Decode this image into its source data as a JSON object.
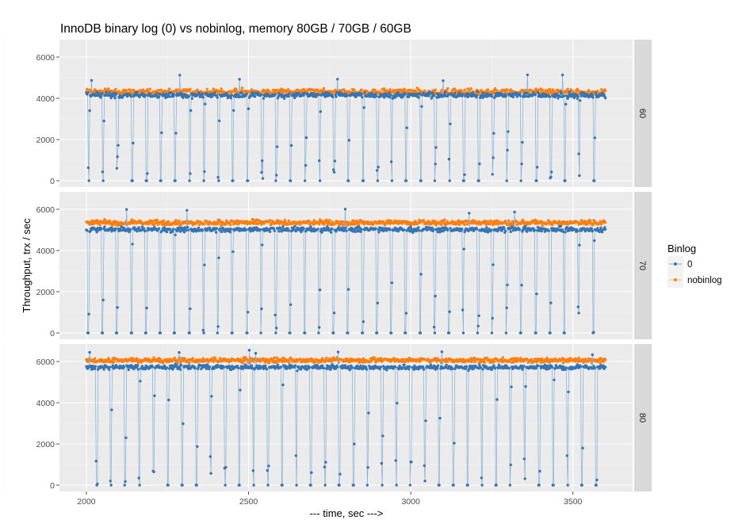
{
  "chart_data": {
    "type": "scatter",
    "title": "InnoDB binary log (0) vs nobinlog, memory 80GB / 70GB / 60GB",
    "xlabel": "--- time, sec --->",
    "ylabel": "Throughput, trx / sec",
    "xlim": [
      1917,
      3684
    ],
    "x_ticks": [
      "2000",
      "2500",
      "3000",
      "3500"
    ],
    "x_tick_values": [
      2000,
      2500,
      3000,
      3500
    ],
    "ylim": [
      -308,
      6846
    ],
    "y_ticks": [
      "0",
      "2000",
      "4000",
      "6000"
    ],
    "y_tick_values": [
      0,
      2000,
      4000,
      6000
    ],
    "grid": true,
    "x_range": [
      2000,
      3600
    ],
    "legend": {
      "title": "Binlog",
      "placement": "right",
      "entries": [
        "0",
        "nobinlog"
      ]
    },
    "colors": {
      "0": "#3575b5",
      "nobinlog": "#ff7f0e",
      "line0": "#7eaedb",
      "lineNobinlog": "#ffbb7a"
    },
    "facets": [
      {
        "label": "60",
        "series": [
          {
            "name": "0",
            "level": 4150,
            "spread": 120,
            "dip_start": 2005,
            "dip_interval": 44.5,
            "dip_count": 36
          },
          {
            "name": "nobinlog",
            "level": 4300,
            "spread": 150
          }
        ]
      },
      {
        "label": "70",
        "series": [
          {
            "name": "0",
            "level": 5020,
            "spread": 110,
            "dip_start": 2003,
            "dip_interval": 44.5,
            "dip_count": 36
          },
          {
            "name": "nobinlog",
            "level": 5350,
            "spread": 110
          }
        ]
      },
      {
        "label": "80",
        "series": [
          {
            "name": "0",
            "level": 5720,
            "spread": 100,
            "dip_start": 2030,
            "dip_interval": 44.0,
            "dip_count": 36
          },
          {
            "name": "nobinlog",
            "level": 6060,
            "spread": 110
          }
        ]
      }
    ]
  }
}
